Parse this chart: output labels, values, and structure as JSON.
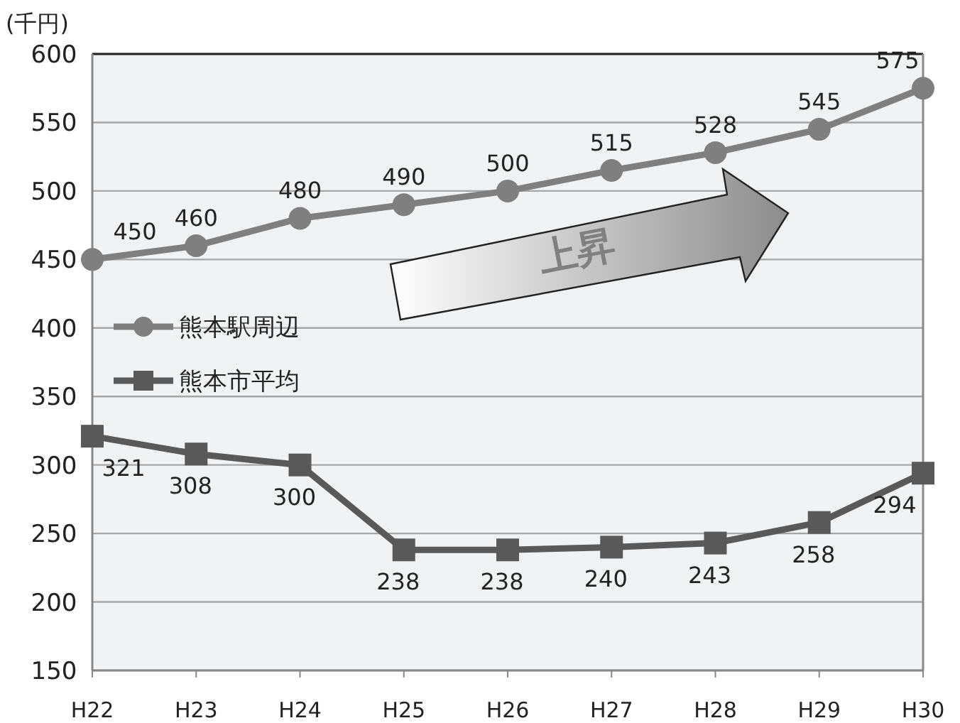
{
  "chart_data": {
    "type": "line",
    "ylabel": "(千円)",
    "categories": [
      "H22",
      "H23",
      "H24",
      "H25",
      "H26",
      "H27",
      "H28",
      "H29",
      "H30"
    ],
    "series": [
      {
        "name": "熊本駅周辺",
        "color": "#7f7f7f",
        "marker": "circle",
        "values": [
          450,
          460,
          480,
          490,
          500,
          515,
          528,
          545,
          575
        ]
      },
      {
        "name": "熊本市平均",
        "color": "#595959",
        "marker": "square",
        "values": [
          321,
          308,
          300,
          238,
          238,
          240,
          243,
          258,
          294
        ]
      }
    ],
    "ylim": [
      150,
      600
    ],
    "yticks": [
      150,
      200,
      250,
      300,
      350,
      400,
      450,
      500,
      550,
      600
    ],
    "grid": "y",
    "legend": "left",
    "data_labels": true,
    "line_style": "solid",
    "annotations": [
      "上昇"
    ]
  }
}
